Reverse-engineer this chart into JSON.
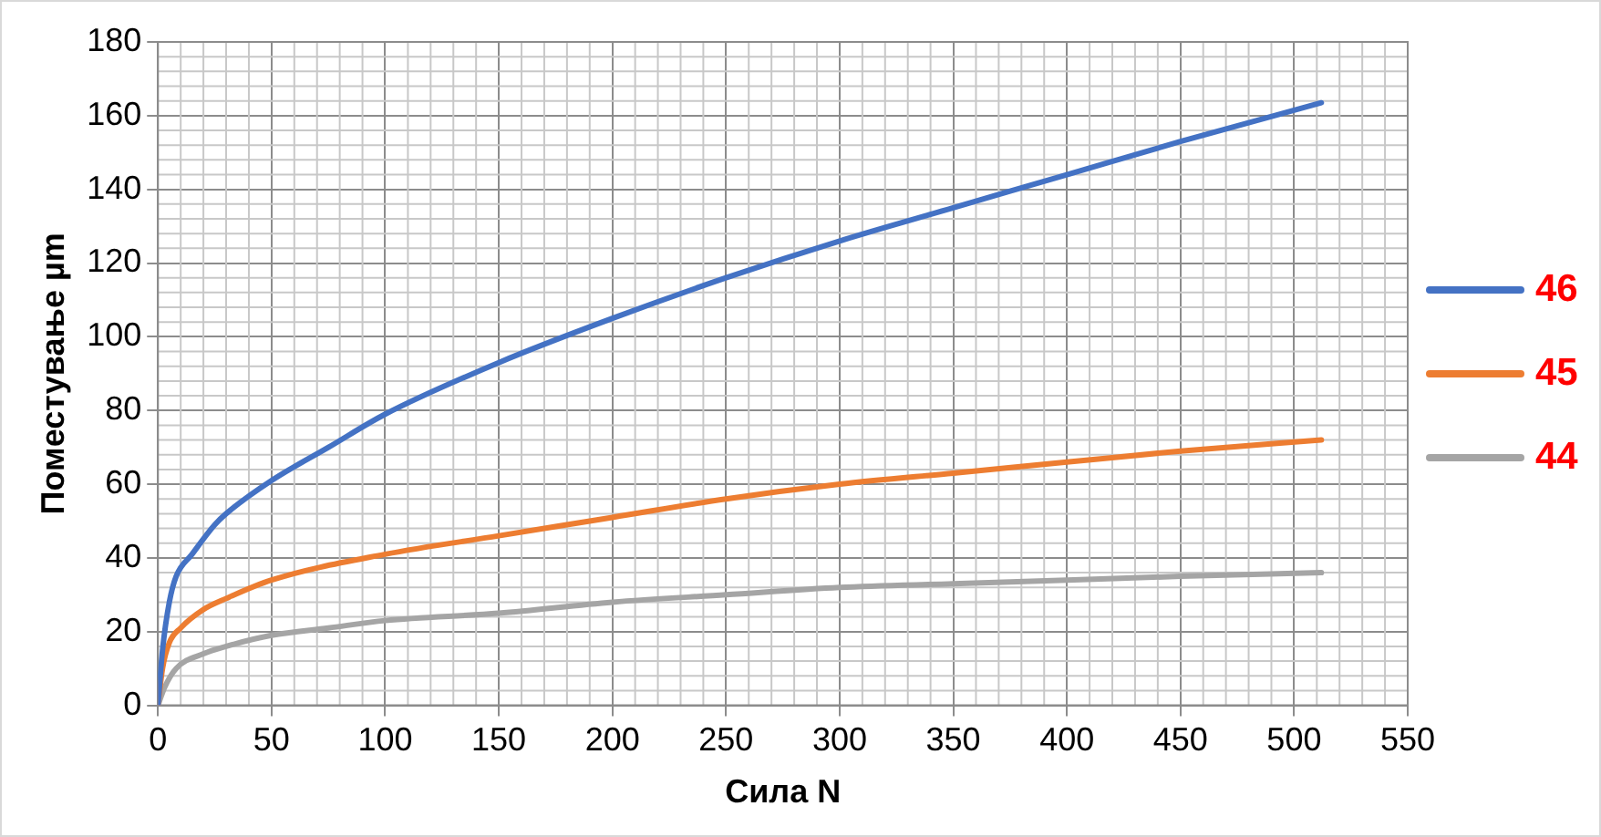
{
  "chart_data": {
    "type": "line",
    "xlabel": "Сила N",
    "ylabel": "Поместување µm",
    "xlim": [
      0,
      550
    ],
    "xticks": [
      0,
      50,
      100,
      150,
      200,
      250,
      300,
      350,
      400,
      450,
      500,
      550
    ],
    "ylim": [
      0,
      180
    ],
    "yticks": [
      0,
      20,
      40,
      60,
      80,
      100,
      120,
      140,
      160,
      180
    ],
    "grid": true,
    "legend": "right",
    "marker": "none",
    "line_style": "solid",
    "series": [
      {
        "name": "46",
        "color": "#4472c4",
        "x": [
          0,
          2,
          5,
          8,
          15,
          25,
          30,
          50,
          75,
          100,
          150,
          200,
          250,
          300,
          350,
          400,
          450,
          512
        ],
        "values": [
          0,
          15,
          28,
          35,
          41,
          49,
          52,
          61,
          70,
          79,
          93,
          105,
          116,
          126,
          135,
          144,
          153,
          163.5
        ]
      },
      {
        "name": "45",
        "color": "#ed7d31",
        "x": [
          0,
          2,
          5,
          10,
          20,
          30,
          50,
          100,
          150,
          200,
          250,
          300,
          350,
          400,
          450,
          512
        ],
        "values": [
          0,
          10,
          17,
          21,
          26,
          29,
          34,
          41,
          46,
          51,
          56,
          60,
          63,
          66,
          69,
          72
        ]
      },
      {
        "name": "44",
        "color": "#a5a5a5",
        "x": [
          0,
          3,
          8,
          20,
          30,
          50,
          75,
          100,
          150,
          200,
          250,
          300,
          350,
          400,
          450,
          512
        ],
        "values": [
          0,
          5,
          10,
          14,
          16,
          19,
          21,
          23,
          25,
          28,
          30,
          32,
          33,
          34,
          35,
          36
        ]
      }
    ]
  }
}
